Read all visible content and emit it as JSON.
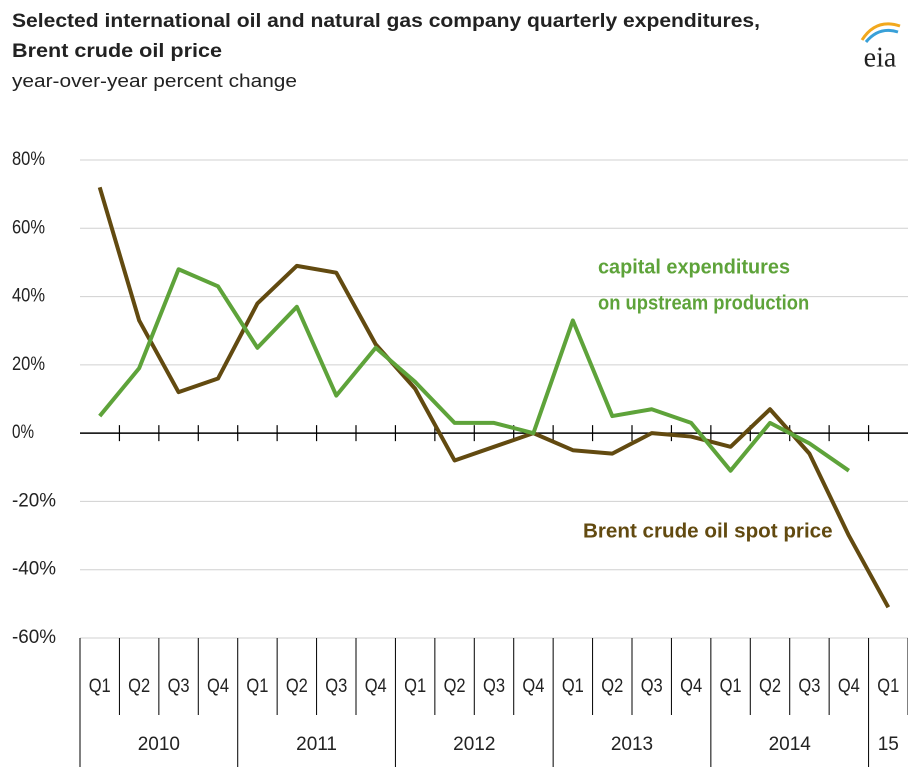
{
  "chart_data": {
    "type": "line",
    "title_lines": [
      "Selected international oil and natural gas company quarterly expenditures,",
      "Brent crude oil price"
    ],
    "subtitle": "year-over-year  percent  change",
    "logo": "eia",
    "categories": [
      "Q1",
      "Q2",
      "Q3",
      "Q4",
      "Q1",
      "Q2",
      "Q3",
      "Q4",
      "Q1",
      "Q2",
      "Q3",
      "Q4",
      "Q1",
      "Q2",
      "Q3",
      "Q4",
      "Q1",
      "Q2",
      "Q3",
      "Q4",
      "Q1"
    ],
    "year_labels": [
      "2010",
      "2011",
      "2012",
      "2013",
      "2014",
      "15"
    ],
    "series": [
      {
        "name": "Brent crude oil spot price",
        "color": "#624a10",
        "values": [
          72,
          33,
          12,
          16,
          38,
          49,
          47,
          26,
          13,
          -8,
          -4,
          0,
          -5,
          -6,
          0,
          -1,
          -4,
          7,
          -6,
          -30,
          -51
        ]
      },
      {
        "name": "capital expenditures on upstream production",
        "color": "#5ea33a",
        "values": [
          5,
          19,
          48,
          43,
          25,
          37,
          11,
          25,
          15,
          3,
          3,
          0,
          33,
          5,
          7,
          3,
          -11,
          3,
          -3,
          -11,
          null
        ]
      }
    ],
    "annotations": [
      {
        "lines": [
          "capital expenditures",
          "on upstream production"
        ],
        "series": 1
      },
      {
        "lines": [
          "Brent crude oil spot price"
        ],
        "series": 0
      }
    ],
    "ylim": [
      -60,
      80
    ],
    "yticks": [
      {
        "value": 80,
        "label": "80%"
      },
      {
        "value": 60,
        "label": "60%"
      },
      {
        "value": 40,
        "label": "40%"
      },
      {
        "value": 20,
        "label": "20%"
      },
      {
        "value": 0,
        "label": "0%"
      },
      {
        "value": -20,
        "label": "-20%"
      },
      {
        "value": -40,
        "label": "-40%"
      },
      {
        "value": -60,
        "label": "-60%"
      }
    ],
    "grid": true
  }
}
